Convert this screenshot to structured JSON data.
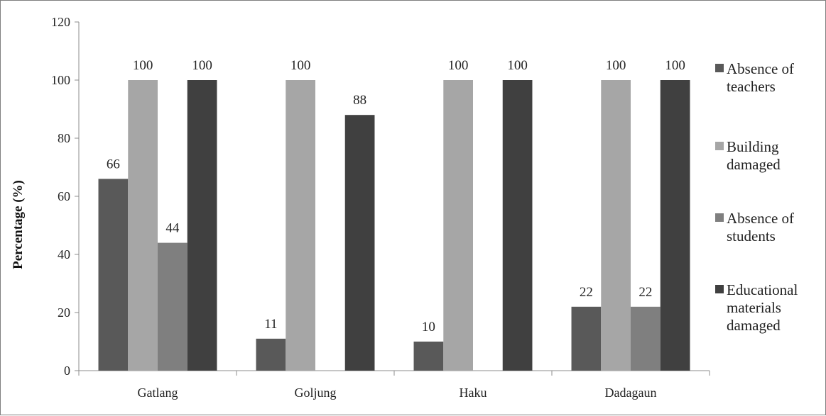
{
  "chart_data": {
    "type": "bar",
    "title": "",
    "xlabel": "",
    "ylabel": "Percentage (%)",
    "ylim": [
      0,
      120
    ],
    "yticks": [
      0,
      20,
      40,
      60,
      80,
      100,
      120
    ],
    "grid": false,
    "legend_position": "right",
    "categories": [
      "Gatlang",
      "Goljung",
      "Haku",
      "Dadagaun"
    ],
    "series": [
      {
        "name": "Absence of teachers",
        "legend_lines": [
          "Absence of",
          "teachers"
        ],
        "color": "#595959",
        "values": [
          66,
          11,
          10,
          22
        ],
        "labels": [
          "66",
          "11",
          "10",
          "22"
        ]
      },
      {
        "name": "Building damaged",
        "legend_lines": [
          "Building",
          "damaged"
        ],
        "color": "#a6a6a6",
        "values": [
          100,
          100,
          100,
          100
        ],
        "labels": [
          "100",
          "100",
          "100",
          "100"
        ]
      },
      {
        "name": "Absence of students",
        "legend_lines": [
          "Absence of",
          "students"
        ],
        "color": "#7f7f7f",
        "values": [
          44,
          0,
          0,
          22
        ],
        "labels": [
          "44",
          "",
          "",
          "22"
        ]
      },
      {
        "name": "Educational materials damaged",
        "legend_lines": [
          "Educational",
          "materials",
          "damaged"
        ],
        "color": "#404040",
        "values": [
          100,
          88,
          100,
          100
        ],
        "labels": [
          "100",
          "88",
          "100",
          "100"
        ]
      }
    ]
  }
}
